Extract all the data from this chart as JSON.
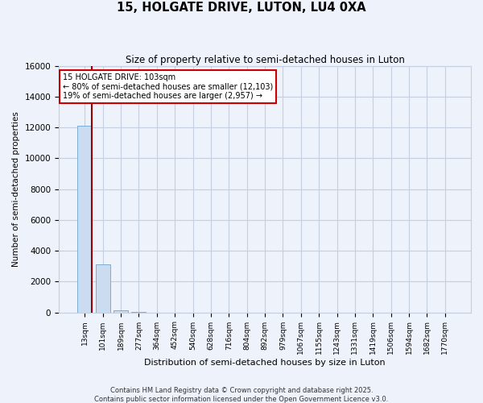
{
  "title": "15, HOLGATE DRIVE, LUTON, LU4 0XA",
  "subtitle": "Size of property relative to semi-detached houses in Luton",
  "xlabel": "Distribution of semi-detached houses by size in Luton",
  "ylabel": "Number of semi-detached properties",
  "categories": [
    "13sqm",
    "101sqm",
    "189sqm",
    "277sqm",
    "364sqm",
    "452sqm",
    "540sqm",
    "628sqm",
    "716sqm",
    "804sqm",
    "892sqm",
    "979sqm",
    "1067sqm",
    "1155sqm",
    "1243sqm",
    "1331sqm",
    "1419sqm",
    "1506sqm",
    "1594sqm",
    "1682sqm",
    "1770sqm"
  ],
  "values": [
    12103,
    3100,
    120,
    25,
    5,
    3,
    2,
    1,
    1,
    1,
    1,
    1,
    1,
    1,
    1,
    1,
    1,
    1,
    1,
    1,
    1
  ],
  "bar_color": "#ccdcf0",
  "bar_edge_color": "#7aadd4",
  "background_color": "#eef2fa",
  "grid_color": "#c5cfe0",
  "annotation_line1": "15 HOLGATE DRIVE: 103sqm",
  "annotation_line2": "← 80% of semi-detached houses are smaller (12,103)",
  "annotation_line3": "19% of semi-detached houses are larger (2,957) →",
  "annotation_box_color": "#cc0000",
  "vline_color": "#990000",
  "footer": "Contains HM Land Registry data © Crown copyright and database right 2025.\nContains public sector information licensed under the Open Government Licence v3.0.",
  "ylim": [
    0,
    16000
  ],
  "yticks": [
    0,
    2000,
    4000,
    6000,
    8000,
    10000,
    12000,
    14000,
    16000
  ]
}
